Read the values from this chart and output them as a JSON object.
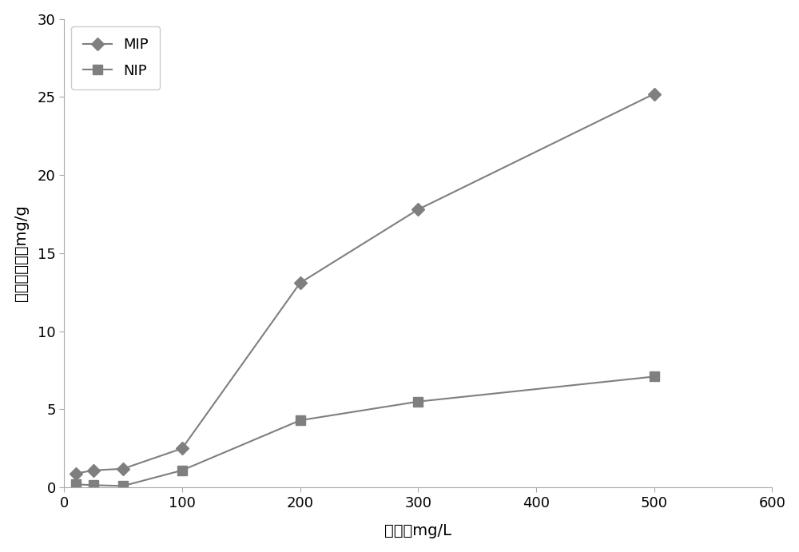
{
  "MIP_x": [
    10,
    25,
    50,
    100,
    200,
    300,
    500
  ],
  "MIP_y": [
    0.9,
    1.1,
    1.2,
    2.5,
    13.1,
    17.8,
    25.2
  ],
  "NIP_x": [
    10,
    25,
    50,
    100,
    200,
    300,
    500
  ],
  "NIP_y": [
    0.2,
    0.15,
    0.1,
    1.1,
    4.3,
    5.5,
    7.1
  ],
  "xlabel_cn": "浓度，",
  "xlabel_en": "mg/L",
  "ylabel_cn": "吸附结合量，",
  "ylabel_en": "mg/g",
  "xlim": [
    0,
    600
  ],
  "ylim": [
    0,
    30
  ],
  "xticks": [
    0,
    100,
    200,
    300,
    400,
    500,
    600
  ],
  "yticks": [
    0,
    5,
    10,
    15,
    20,
    25,
    30
  ],
  "MIP_label": "MIP",
  "NIP_label": "NIP",
  "line_color": "#7f7f7f",
  "marker_MIP": "D",
  "marker_NIP": "s",
  "markersize": 8,
  "linewidth": 1.5,
  "legend_fontsize": 13,
  "axis_fontsize": 14,
  "tick_fontsize": 13,
  "bg_color": "#ffffff",
  "spine_color": "#aaaaaa",
  "figsize": [
    10.0,
    6.91
  ],
  "dpi": 100
}
